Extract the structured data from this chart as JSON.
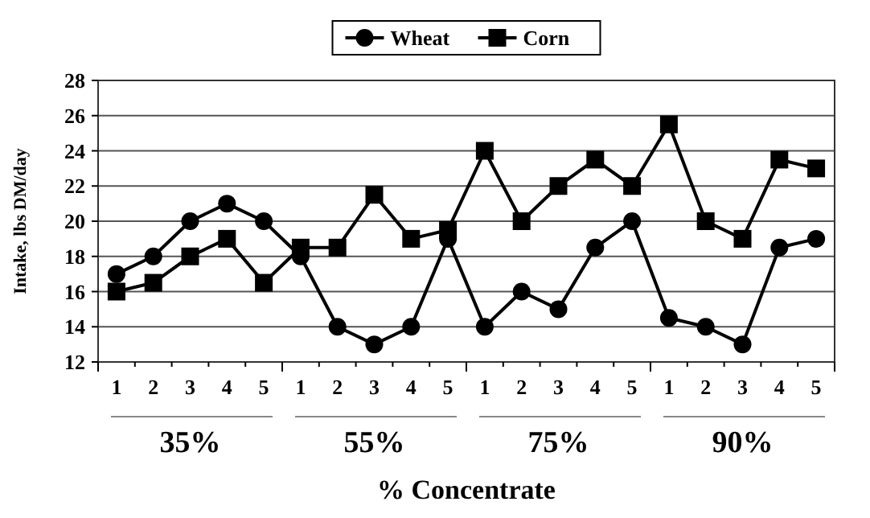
{
  "chart_data": {
    "type": "line",
    "xlabel": "% Concentrate",
    "ylabel": "Intake, lbs DM/day",
    "categories": [
      "1",
      "2",
      "3",
      "4",
      "5",
      "1",
      "2",
      "3",
      "4",
      "5",
      "1",
      "2",
      "3",
      "4",
      "5",
      "1",
      "2",
      "3",
      "4",
      "5"
    ],
    "annotations": [
      "35%",
      "55%",
      "75%",
      "90%"
    ],
    "series": [
      {
        "name": "Wheat",
        "color": "#000000",
        "marker": "circle",
        "values": [
          17,
          18,
          20,
          21,
          20,
          18,
          14,
          13,
          14,
          19,
          14,
          16,
          15,
          18.5,
          20,
          14.5,
          14,
          13,
          18.5,
          19
        ]
      },
      {
        "name": "Corn",
        "color": "#000000",
        "marker": "square",
        "values": [
          16,
          16.5,
          18,
          19,
          16.5,
          18.5,
          18.5,
          21.5,
          19,
          19.5,
          24,
          20,
          22,
          23.5,
          22,
          25.5,
          20,
          19,
          23.5,
          23
        ]
      }
    ],
    "ylim": [
      12,
      28
    ],
    "yticks": [
      12,
      14,
      16,
      18,
      20,
      22,
      24,
      26,
      28
    ],
    "grid": "y",
    "legend": "top",
    "line_style": "solid"
  }
}
